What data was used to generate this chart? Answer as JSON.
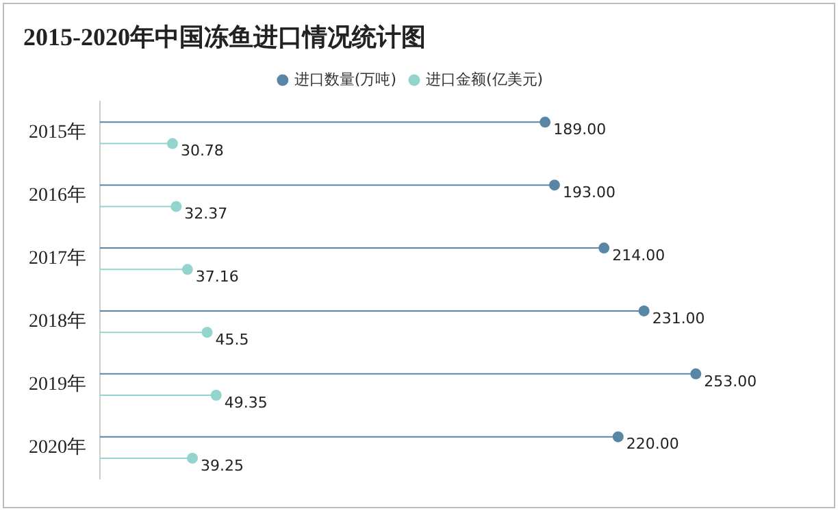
{
  "chart_data": {
    "type": "lollipop",
    "orientation": "horizontal",
    "title": "2015-2020年中国冻鱼进口情况统计图",
    "categories": [
      "2015年",
      "2016年",
      "2017年",
      "2018年",
      "2019年",
      "2020年"
    ],
    "series": [
      {
        "name": "进口数量(万吨)",
        "color": "#5a86a6",
        "values": [
          189,
          193,
          214,
          231,
          253,
          220
        ],
        "value_labels": [
          "189.00",
          "193.00",
          "214.00",
          "231.00",
          "253.00",
          "220.00"
        ]
      },
      {
        "name": "进口金额(亿美元)",
        "color": "#93d4cf",
        "values": [
          30.78,
          32.37,
          37.16,
          45.5,
          49.35,
          39.25
        ],
        "value_labels": [
          "30.78",
          "32.37",
          "37.16",
          "45.5",
          "49.35",
          "39.25"
        ]
      }
    ],
    "legend": "top",
    "marker": "circle"
  }
}
